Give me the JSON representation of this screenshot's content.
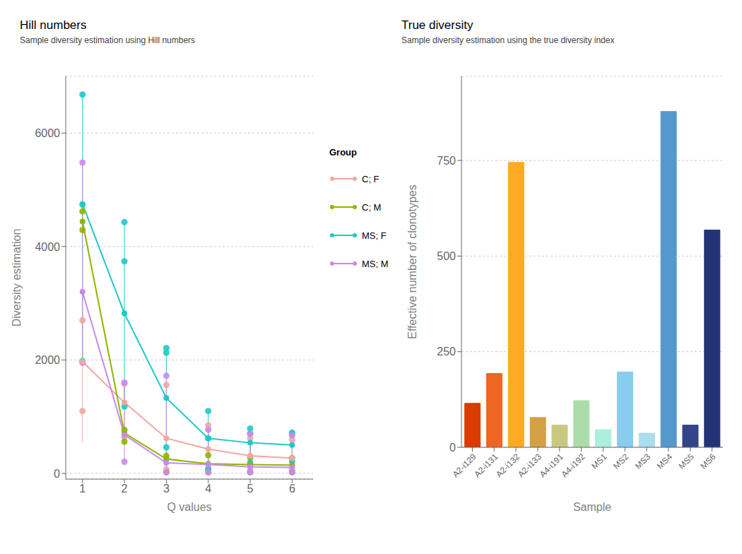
{
  "chart_data": [
    {
      "type": "line",
      "title": "Hill numbers",
      "subtitle": "Sample diversity estimation using Hill numbers",
      "x_label": "Q values",
      "y_label": "Diversity estimation",
      "x": [
        1,
        2,
        3,
        4,
        5,
        6
      ],
      "xlim": [
        0.6,
        6.5
      ],
      "ylim": [
        -100,
        7000
      ],
      "xticks": [
        1,
        2,
        3,
        4,
        5,
        6
      ],
      "yticks": [
        0,
        2000,
        4000,
        6000
      ],
      "grid": "y",
      "legend": "right",
      "legend_title": "Group",
      "marker": "circle",
      "series": [
        {
          "name": "C; F",
          "color": "#F4A6A0",
          "values": [
            1970,
            1250,
            620,
            430,
            310,
            270
          ],
          "error_upper": [
            3250,
            1650,
            1570,
            870,
            650,
            640
          ],
          "error_lower": [
            550,
            530,
            20,
            20,
            20,
            20
          ],
          "points_x": [
            1,
            1,
            2,
            2,
            3,
            3,
            4,
            4,
            5,
            5,
            6,
            6
          ],
          "points_y": [
            1100,
            2700,
            640,
            1580,
            70,
            1560,
            70,
            850,
            50,
            620,
            50,
            590
          ]
        },
        {
          "name": "C; M",
          "color": "#8DB600",
          "values": [
            4440,
            710,
            255,
            170,
            155,
            145
          ],
          "error_upper": [
            4640,
            775,
            320,
            330,
            295,
            280
          ],
          "error_lower": [
            4290,
            560,
            20,
            20,
            20,
            20
          ],
          "points_x": [
            1,
            1,
            2,
            2,
            3,
            3,
            4,
            4,
            5,
            5,
            6,
            6
          ],
          "points_y": [
            4290,
            4620,
            560,
            770,
            20,
            310,
            20,
            320,
            20,
            280,
            20,
            270
          ]
        },
        {
          "name": "MS; F",
          "color": "#20C8C8",
          "values": [
            4750,
            2820,
            1330,
            620,
            540,
            500
          ],
          "error_upper": [
            6680,
            4430,
            2210,
            1100,
            790,
            720
          ],
          "error_lower": [
            1980,
            1180,
            460,
            80,
            190,
            210
          ],
          "points_x": [
            1,
            1,
            1,
            2,
            2,
            2,
            3,
            3,
            3,
            4,
            4,
            4,
            5,
            5,
            5,
            6,
            6,
            6
          ],
          "points_y": [
            1980,
            4740,
            6680,
            1180,
            3740,
            4430,
            460,
            2130,
            2210,
            80,
            620,
            1100,
            190,
            700,
            790,
            210,
            700,
            720
          ]
        },
        {
          "name": "MS; M",
          "color": "#CC88EE",
          "values": [
            3200,
            680,
            185,
            160,
            115,
            105
          ],
          "error_upper": [
            5480,
            1600,
            1720,
            770,
            700,
            670
          ],
          "error_lower": [
            1950,
            205,
            20,
            20,
            20,
            20
          ],
          "points_x": [
            1,
            1,
            2,
            2,
            3,
            3,
            4,
            4,
            5,
            5,
            6,
            6
          ],
          "points_y": [
            1950,
            5480,
            205,
            1600,
            20,
            1720,
            20,
            770,
            20,
            700,
            20,
            670
          ]
        }
      ]
    },
    {
      "type": "bar",
      "title": "True diversity",
      "subtitle": "Sample diversity estimation using the true diversity index",
      "x_label": "Sample",
      "y_label": "Effective number of clonotypes",
      "categories": [
        "A2-i129",
        "A2-i131",
        "A2-i132",
        "A2-i133",
        "A4-i191",
        "A4-i192",
        "MS1",
        "MS2",
        "MS3",
        "MS4",
        "MS5",
        "MS6"
      ],
      "values": [
        115,
        193,
        745,
        78,
        58,
        122,
        46,
        197,
        37,
        878,
        58,
        568
      ],
      "colors": [
        "#D93B00",
        "#EE6622",
        "#FFAA22",
        "#D4A044",
        "#C8C880",
        "#AADDAA",
        "#AAEEDD",
        "#88CCEE",
        "#AADDEE",
        "#5599CC",
        "#334488",
        "#223377"
      ],
      "ylim": [
        0,
        970
      ],
      "yticks": [
        0,
        250,
        500,
        750
      ],
      "grid": "y"
    }
  ]
}
